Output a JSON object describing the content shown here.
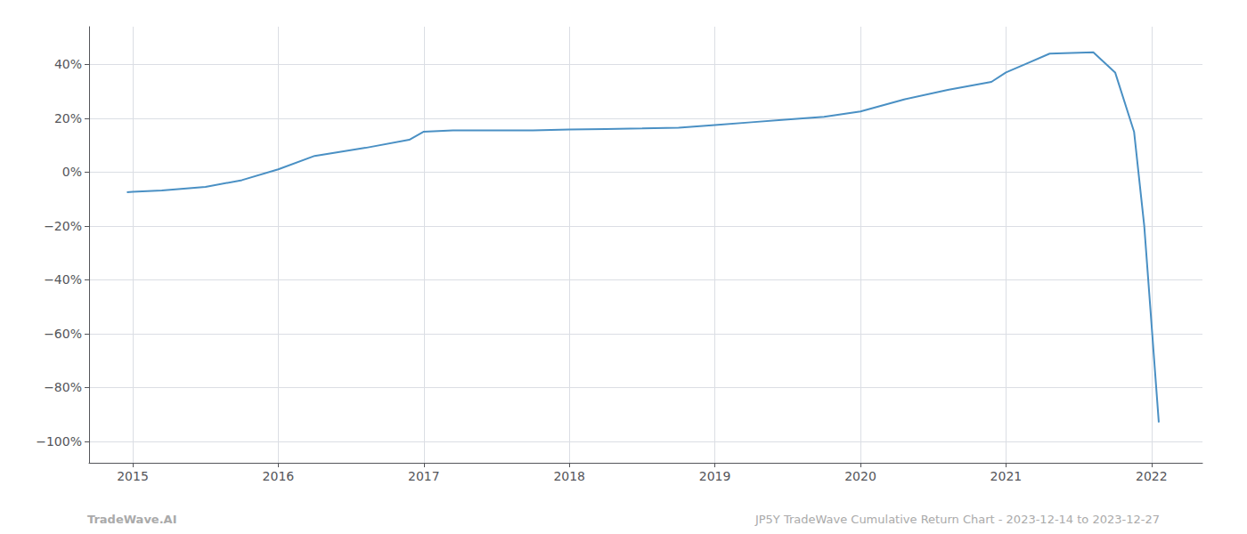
{
  "chart_data": {
    "type": "line",
    "x": [
      2014.96,
      2015.0,
      2015.2,
      2015.5,
      2015.75,
      2016.0,
      2016.25,
      2016.6,
      2016.9,
      2017.0,
      2017.2,
      2017.5,
      2017.75,
      2018.0,
      2018.25,
      2018.5,
      2018.75,
      2019.0,
      2019.25,
      2019.5,
      2019.75,
      2020.0,
      2020.3,
      2020.6,
      2020.9,
      2021.0,
      2021.15,
      2021.3,
      2021.6,
      2021.75,
      2021.88,
      2021.95,
      2022.05
    ],
    "values": [
      -0.075,
      -0.073,
      -0.068,
      -0.055,
      -0.03,
      0.01,
      0.06,
      0.09,
      0.12,
      0.15,
      0.155,
      0.155,
      0.155,
      0.158,
      0.16,
      0.162,
      0.165,
      0.175,
      0.185,
      0.195,
      0.205,
      0.225,
      0.27,
      0.305,
      0.335,
      0.37,
      0.405,
      0.44,
      0.445,
      0.37,
      0.15,
      -0.2,
      -0.93
    ],
    "color": "#4a90c4",
    "xlim": [
      2014.7,
      2022.35
    ],
    "xticks": [
      2015,
      2016,
      2017,
      2018,
      2019,
      2020,
      2021,
      2022
    ],
    "ylim": [
      -1.08,
      0.54
    ],
    "yticks": [
      {
        "value": -1.0,
        "label": "−100%"
      },
      {
        "value": -0.8,
        "label": "−80%"
      },
      {
        "value": -0.6,
        "label": "−60%"
      },
      {
        "value": -0.4,
        "label": "−40%"
      },
      {
        "value": -0.2,
        "label": "−20%"
      },
      {
        "value": 0.0,
        "label": "0%"
      },
      {
        "value": 0.2,
        "label": "20%"
      },
      {
        "value": 0.4,
        "label": "40%"
      }
    ],
    "grid": true,
    "annotations": [
      "TradeWave.AI",
      "JP5Y TradeWave Cumulative Return Chart - 2023-12-14 to 2023-12-27"
    ]
  }
}
